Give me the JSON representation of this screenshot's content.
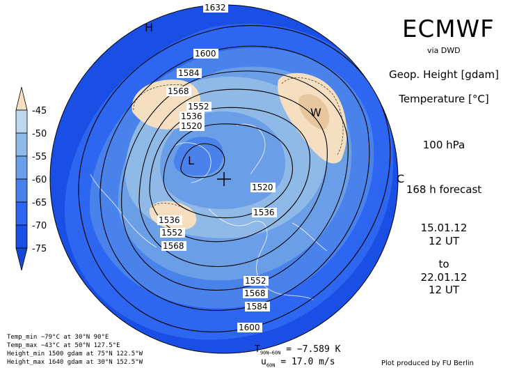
{
  "header": {
    "title": "ECMWF",
    "via": "via DWD",
    "variable1": "Geop. Height [gdam]",
    "variable2": "Temperature [°C]",
    "level": "100 hPa",
    "forecast": "168 h forecast",
    "init_date": "15.01.12",
    "init_time": "12 UT",
    "to": "to",
    "valid_date": "22.01.12",
    "valid_time": "12 UT"
  },
  "legend": {
    "labels": [
      "-45",
      "-50",
      "-55",
      "-60",
      "-65",
      "-70",
      "-75"
    ],
    "colors": [
      "#f5dfc0",
      "#bcd6ee",
      "#8fb9e6",
      "#6a9ee6",
      "#4a82ec",
      "#2d66f0",
      "#1a4fe6"
    ]
  },
  "stats": {
    "temp_min": "Temp_min −79°C at 30°N 90°E",
    "temp_max": "Temp_max −43°C at 50°N 127.5°E",
    "height_min": "Height_min 1500 gdam at 75°N 122.5°W",
    "height_max": "Height_max 1640 gdam at 30°N 152.5°W"
  },
  "bottom": {
    "t_label": "T",
    "t_sub": "90N−60N",
    "t_value": "= −7.589 K",
    "u_label": "u",
    "u_sub": "60N",
    "u_value": "= 17.0 m/s",
    "credit": "Plot produced by FU Berlin"
  },
  "map": {
    "markers": {
      "high": "H",
      "low": "L",
      "warm": "W",
      "cold": "C"
    },
    "contour_labels": [
      "1632",
      "1600",
      "1584",
      "1568",
      "1552",
      "1536",
      "1520",
      "1520",
      "1536",
      "1536",
      "1552",
      "1568",
      "1552",
      "1568",
      "1584",
      "1600"
    ]
  }
}
